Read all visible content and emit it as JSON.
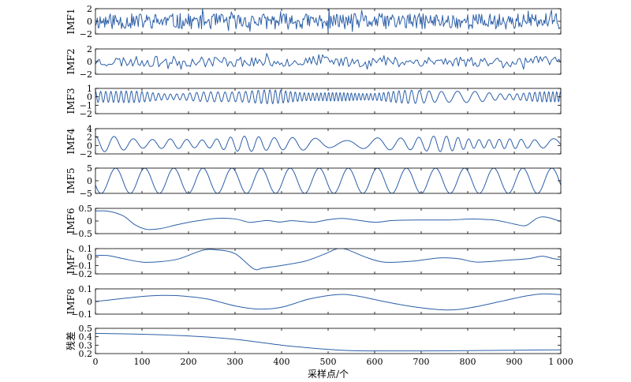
{
  "chart_data": {
    "type": "line",
    "x_axis": {
      "label": "采样点/个",
      "ticks": [
        0,
        100,
        200,
        300,
        400,
        500,
        600,
        700,
        800,
        900,
        1000
      ],
      "tick_labels": [
        "0",
        "100",
        "200",
        "300",
        "400",
        "500",
        "600",
        "700",
        "800",
        "900",
        "1 000"
      ],
      "range": [
        0,
        1000
      ]
    },
    "line_color": "#2c5fa8",
    "panels": [
      {
        "label": "IMF1",
        "ylim": [
          -2,
          2
        ],
        "yticks": [
          2,
          0,
          -2
        ],
        "ytick_labels": [
          "2",
          "0",
          "−2"
        ],
        "signal": {
          "kind": "noise",
          "amplitude": 1.25,
          "spacing": 2,
          "seed": 11
        }
      },
      {
        "label": "IMF2",
        "ylim": [
          -2,
          2
        ],
        "yticks": [
          2,
          0,
          -2
        ],
        "ytick_labels": [
          "2",
          "0",
          "−2"
        ],
        "signal": {
          "kind": "noise",
          "amplitude": 0.85,
          "spacing": 4,
          "seed": 23
        }
      },
      {
        "label": "IMF3",
        "ylim": [
          -2,
          1
        ],
        "yticks": [
          1,
          0,
          -1,
          -2
        ],
        "ytick_labels": [
          "1",
          "0",
          "−1",
          "−2"
        ],
        "signal": {
          "kind": "modsine",
          "amplitude": 0.75,
          "period": 12,
          "offset": 0,
          "seed": 37
        }
      },
      {
        "label": "IMF4",
        "ylim": [
          -2,
          4
        ],
        "yticks": [
          4,
          2,
          0,
          -2
        ],
        "ytick_labels": [
          "4",
          "2",
          "0",
          "−2"
        ],
        "signal": {
          "kind": "modsine",
          "amplitude": 1.7,
          "period": 38,
          "offset": 0.4,
          "seed": 53
        }
      },
      {
        "label": "IMF5",
        "ylim": [
          -5,
          5
        ],
        "yticks": [
          5,
          0,
          -5
        ],
        "ytick_labels": [
          "5",
          "0",
          "−5"
        ],
        "signal": {
          "kind": "sine",
          "amplitude": 5.0,
          "period": 62.5,
          "phase_deg": 200
        }
      },
      {
        "label": "IMF6",
        "ylim": [
          -0.5,
          0.5
        ],
        "yticks": [
          0.5,
          0,
          -0.5
        ],
        "ytick_labels": [
          "0.5",
          "0",
          "−0.5"
        ],
        "points": [
          [
            0,
            0.4
          ],
          [
            30,
            0.38
          ],
          [
            60,
            0.2
          ],
          [
            85,
            -0.15
          ],
          [
            110,
            -0.33
          ],
          [
            140,
            -0.3
          ],
          [
            175,
            -0.15
          ],
          [
            210,
            -0.02
          ],
          [
            260,
            0.1
          ],
          [
            300,
            0.08
          ],
          [
            330,
            -0.05
          ],
          [
            350,
            -0.02
          ],
          [
            370,
            0.02
          ],
          [
            395,
            -0.04
          ],
          [
            420,
            0.01
          ],
          [
            445,
            -0.02
          ],
          [
            470,
            -0.05
          ],
          [
            500,
            0.05
          ],
          [
            530,
            0.1
          ],
          [
            560,
            0.04
          ],
          [
            600,
            -0.05
          ],
          [
            640,
            0.02
          ],
          [
            700,
            0.04
          ],
          [
            760,
            0.04
          ],
          [
            810,
            0.08
          ],
          [
            860,
            0.03
          ],
          [
            900,
            -0.12
          ],
          [
            925,
            -0.18
          ],
          [
            950,
            0.12
          ],
          [
            970,
            0.15
          ],
          [
            1000,
            -0.02
          ]
        ]
      },
      {
        "label": "IMF7",
        "ylim": [
          -0.2,
          0.1
        ],
        "yticks": [
          0.1,
          0,
          -0.1,
          -0.2
        ],
        "ytick_labels": [
          "0.1",
          "0",
          "−0.1",
          "−0.2"
        ],
        "points": [
          [
            0,
            0.02
          ],
          [
            30,
            0.015
          ],
          [
            60,
            -0.02
          ],
          [
            100,
            -0.06
          ],
          [
            140,
            -0.055
          ],
          [
            180,
            -0.02
          ],
          [
            230,
            0.08
          ],
          [
            260,
            0.085
          ],
          [
            300,
            0.04
          ],
          [
            340,
            -0.14
          ],
          [
            360,
            -0.13
          ],
          [
            400,
            -0.1
          ],
          [
            450,
            -0.05
          ],
          [
            490,
            0.03
          ],
          [
            520,
            0.1
          ],
          [
            540,
            0.09
          ],
          [
            580,
            0.0
          ],
          [
            620,
            -0.06
          ],
          [
            680,
            -0.05
          ],
          [
            740,
            -0.01
          ],
          [
            780,
            -0.02
          ],
          [
            820,
            -0.06
          ],
          [
            880,
            -0.04
          ],
          [
            930,
            -0.02
          ],
          [
            960,
            0.01
          ],
          [
            985,
            -0.02
          ],
          [
            1000,
            -0.03
          ]
        ]
      },
      {
        "label": "IMF8",
        "ylim": [
          -0.1,
          0.1
        ],
        "yticks": [
          0.1,
          0,
          -0.1
        ],
        "ytick_labels": [
          "0.1",
          "0",
          "−0.1"
        ],
        "points": [
          [
            0,
            0.0
          ],
          [
            50,
            0.02
          ],
          [
            100,
            0.04
          ],
          [
            140,
            0.048
          ],
          [
            180,
            0.045
          ],
          [
            240,
            0.02
          ],
          [
            300,
            -0.035
          ],
          [
            350,
            -0.06
          ],
          [
            400,
            -0.045
          ],
          [
            460,
            0.02
          ],
          [
            520,
            0.055
          ],
          [
            560,
            0.045
          ],
          [
            620,
            0.0
          ],
          [
            680,
            -0.04
          ],
          [
            740,
            -0.065
          ],
          [
            780,
            -0.063
          ],
          [
            820,
            -0.04
          ],
          [
            870,
            -0.0
          ],
          [
            920,
            0.04
          ],
          [
            960,
            0.06
          ],
          [
            1000,
            0.055
          ]
        ]
      },
      {
        "label": "残差",
        "ylim": [
          0.2,
          0.5
        ],
        "yticks": [
          0.5,
          0.4,
          0.3,
          0.2
        ],
        "ytick_labels": [
          "0.5",
          "0.4",
          "0.3",
          "0.2"
        ],
        "points": [
          [
            0,
            0.44
          ],
          [
            100,
            0.43
          ],
          [
            200,
            0.41
          ],
          [
            300,
            0.37
          ],
          [
            400,
            0.3
          ],
          [
            500,
            0.25
          ],
          [
            550,
            0.235
          ],
          [
            600,
            0.232
          ],
          [
            700,
            0.232
          ],
          [
            800,
            0.235
          ],
          [
            900,
            0.24
          ],
          [
            1000,
            0.245
          ]
        ]
      }
    ]
  }
}
